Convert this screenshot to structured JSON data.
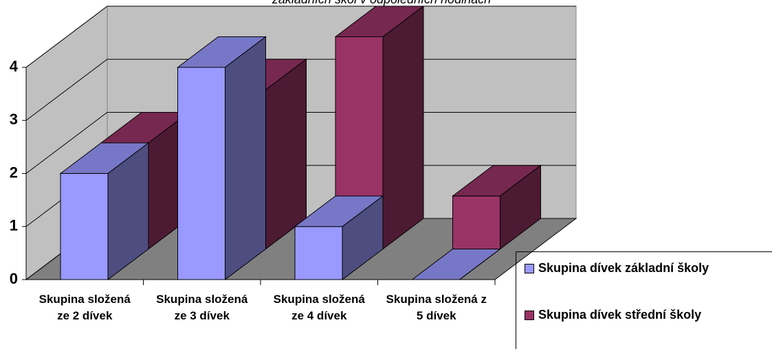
{
  "chart_data": {
    "type": "bar3d",
    "title": "základních škol v odpoledních hodinách",
    "categories": [
      "Skupina složená ze 2 dívek",
      "Skupina složená ze 3 dívek",
      "Skupina složená ze 4 dívek",
      "Skupina složená z 5 dívek"
    ],
    "series": [
      {
        "name": "Skupina dívek základní školy",
        "color": "#9999ff",
        "values": [
          2,
          4,
          1,
          0
        ]
      },
      {
        "name": "Skupina dívek střední školy",
        "color": "#993366",
        "values": [
          2,
          3,
          4,
          1
        ]
      }
    ],
    "ylim": [
      0,
      4
    ],
    "yticks": [
      0,
      1,
      2,
      3,
      4
    ],
    "grid": true,
    "legend": "bottom-right"
  }
}
